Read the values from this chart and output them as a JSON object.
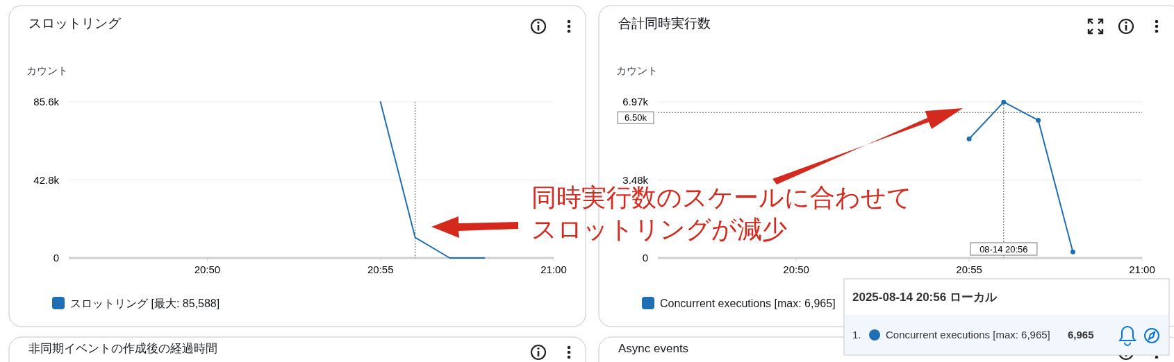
{
  "chart_data": [
    {
      "type": "line",
      "title": "スロットリング",
      "ylabel": "カウント",
      "x": [
        "2025-08-14T20:55",
        "2025-08-14T20:56",
        "2025-08-14T20:57",
        "2025-08-14T20:58"
      ],
      "series": [
        {
          "name": "スロットリング [最大: 85,588]",
          "color": "#1f6fb2",
          "values": [
            85588,
            11300,
            0,
            0
          ]
        }
      ],
      "xlim": [
        "2025-08-14T20:46",
        "2025-08-14T21:00"
      ],
      "xticks": [
        {
          "value": "2025-08-14T20:50",
          "label": "20:50"
        },
        {
          "value": "2025-08-14T20:55",
          "label": "20:55"
        },
        {
          "value": "2025-08-14T21:00",
          "label": "21:00"
        }
      ],
      "ylim": [
        0,
        85600
      ],
      "yticks": [
        0,
        {
          "value": 42800,
          "label": "42.8k"
        },
        {
          "value": 85600,
          "label": "85.6k"
        }
      ],
      "grid": "y",
      "legend": "bottom",
      "ref_lines": [
        {
          "axis": "x",
          "value": "2025-08-14T20:56",
          "line_style": "dotted"
        }
      ],
      "annotations": [
        "同時実行数のスケールに合わせて",
        "スロットリングが減少"
      ]
    },
    {
      "type": "line",
      "title": "合計同時実行数",
      "ylabel": "カウント",
      "x": [
        "2025-08-14T20:55",
        "2025-08-14T20:56",
        "2025-08-14T20:57",
        "2025-08-14T20:58"
      ],
      "series": [
        {
          "name": "Concurrent executions [max: 6,965]",
          "color": "#1f6fb2",
          "values": [
            5320,
            6965,
            6150,
            270
          ]
        }
      ],
      "xlim": [
        "2025-08-14T20:46",
        "2025-08-14T21:00"
      ],
      "xticks": [
        {
          "value": "2025-08-14T20:50",
          "label": "20:50"
        },
        {
          "value": "2025-08-14T20:55",
          "label": "20:55"
        },
        {
          "value": "2025-08-14T21:00",
          "label": "21:00"
        }
      ],
      "ylim": [
        0,
        6970
      ],
      "yticks": [
        0,
        {
          "value": 3480,
          "label": "3.48k"
        },
        {
          "value": 6970,
          "label": "6.97k"
        }
      ],
      "grid": "y",
      "legend": "bottom",
      "marker": "circle",
      "ref_lines": [
        {
          "axis": "x",
          "value": "2025-08-14T20:56",
          "label": "08-14 20:56",
          "line_style": "dotted"
        },
        {
          "axis": "y",
          "value": 6500,
          "label": "6.50k",
          "line_style": "dotted"
        }
      ],
      "annotations": [
        "2025-08-14 20:56 ローカル",
        "1.",
        "Concurrent executions [max: 6,965]",
        "6,965"
      ]
    },
    {
      "type": "other",
      "title": "非同期イベントの作成後の経過時間"
    },
    {
      "type": "other",
      "title": "Async events"
    }
  ]
}
